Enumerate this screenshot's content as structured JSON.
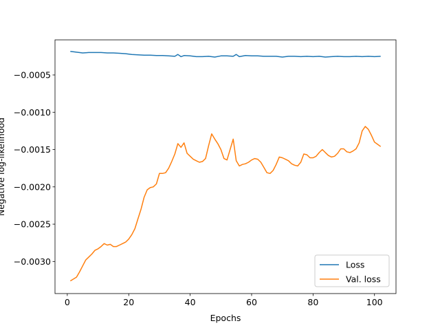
{
  "chart_data": {
    "type": "line",
    "xlabel": "Epochs",
    "ylabel": "Negative log-likelihood",
    "xlim": [
      -4,
      107
    ],
    "ylim": [
      -0.00343,
      -3e-05
    ],
    "xticks": [
      0,
      20,
      40,
      60,
      80,
      100
    ],
    "yticks": [
      -0.003,
      -0.0025,
      -0.002,
      -0.0015,
      -0.001,
      -0.0005
    ],
    "ytick_labels": [
      "−0.0030",
      "−0.0025",
      "−0.0020",
      "−0.0015",
      "−0.0010",
      "−0.0005"
    ],
    "grid": false,
    "legend": "lower-right",
    "series": [
      {
        "name": "Loss",
        "color": "#1f77b4",
        "x": [
          1,
          3,
          5,
          7,
          9,
          11,
          13,
          15,
          17,
          19,
          21,
          23,
          25,
          27,
          29,
          31,
          33,
          35,
          36,
          37,
          38,
          40,
          42,
          44,
          46,
          48,
          50,
          52,
          54,
          55,
          56,
          58,
          60,
          62,
          64,
          66,
          68,
          70,
          72,
          74,
          76,
          78,
          80,
          82,
          84,
          86,
          88,
          90,
          92,
          94,
          96,
          98,
          100,
          102
        ],
        "y": [
          -0.000185,
          -0.000195,
          -0.000205,
          -0.0002,
          -0.0002,
          -0.0002,
          -0.000205,
          -0.000205,
          -0.00021,
          -0.000215,
          -0.000225,
          -0.00023,
          -0.000235,
          -0.000235,
          -0.00024,
          -0.00024,
          -0.000245,
          -0.00025,
          -0.000225,
          -0.000255,
          -0.00024,
          -0.000245,
          -0.000255,
          -0.000255,
          -0.00025,
          -0.00026,
          -0.000245,
          -0.000245,
          -0.00025,
          -0.000225,
          -0.000255,
          -0.00024,
          -0.000245,
          -0.000245,
          -0.00025,
          -0.00025,
          -0.00025,
          -0.00026,
          -0.00025,
          -0.00025,
          -0.000255,
          -0.00025,
          -0.000255,
          -0.00025,
          -0.00026,
          -0.000255,
          -0.00025,
          -0.000255,
          -0.000255,
          -0.00025,
          -0.000255,
          -0.00025,
          -0.000255,
          -0.00025
        ]
      },
      {
        "name": "Val. loss",
        "color": "#ff7f0e",
        "x": [
          1,
          3,
          4,
          5,
          6,
          7,
          8,
          9,
          10,
          11,
          12,
          13,
          14,
          15,
          16,
          17,
          18,
          19,
          20,
          21,
          22,
          23,
          24,
          25,
          26,
          27,
          28,
          29,
          30,
          31,
          32,
          33,
          34,
          35,
          36,
          37,
          38,
          39,
          40,
          41,
          42,
          43,
          44,
          45,
          46,
          47,
          48,
          49,
          50,
          51,
          52,
          53,
          54,
          55,
          56,
          57,
          58,
          59,
          60,
          61,
          62,
          63,
          64,
          65,
          66,
          67,
          68,
          69,
          70,
          71,
          72,
          73,
          74,
          75,
          76,
          77,
          78,
          79,
          80,
          81,
          82,
          83,
          84,
          85,
          86,
          87,
          88,
          89,
          90,
          91,
          92,
          93,
          94,
          95,
          96,
          97,
          98,
          99,
          100,
          101,
          102
        ],
        "y": [
          -0.00326,
          -0.00321,
          -0.00314,
          -0.00306,
          -0.00298,
          -0.00294,
          -0.0029,
          -0.00285,
          -0.00283,
          -0.0028,
          -0.00276,
          -0.00278,
          -0.00277,
          -0.0028,
          -0.0028,
          -0.00278,
          -0.00276,
          -0.00274,
          -0.0027,
          -0.00264,
          -0.00256,
          -0.00243,
          -0.0023,
          -0.00214,
          -0.00204,
          -0.00201,
          -0.002,
          -0.00196,
          -0.00182,
          -0.00182,
          -0.00181,
          -0.00175,
          -0.00166,
          -0.00156,
          -0.00142,
          -0.00147,
          -0.00141,
          -0.00155,
          -0.00159,
          -0.00163,
          -0.00165,
          -0.00167,
          -0.00166,
          -0.00162,
          -0.00145,
          -0.00129,
          -0.00136,
          -0.00142,
          -0.0015,
          -0.00162,
          -0.00164,
          -0.0015,
          -0.00136,
          -0.00165,
          -0.00172,
          -0.0017,
          -0.00169,
          -0.00167,
          -0.00164,
          -0.00162,
          -0.00163,
          -0.00167,
          -0.00174,
          -0.00181,
          -0.00182,
          -0.00178,
          -0.0017,
          -0.0016,
          -0.00161,
          -0.00163,
          -0.00165,
          -0.00169,
          -0.00171,
          -0.00172,
          -0.00167,
          -0.00156,
          -0.00157,
          -0.00161,
          -0.00161,
          -0.00159,
          -0.00154,
          -0.0015,
          -0.00154,
          -0.00158,
          -0.0016,
          -0.00159,
          -0.00155,
          -0.00149,
          -0.00149,
          -0.00153,
          -0.00154,
          -0.00152,
          -0.00149,
          -0.00141,
          -0.00125,
          -0.00119,
          -0.00123,
          -0.00131,
          -0.0014,
          -0.00143,
          -0.00146
        ]
      }
    ]
  }
}
